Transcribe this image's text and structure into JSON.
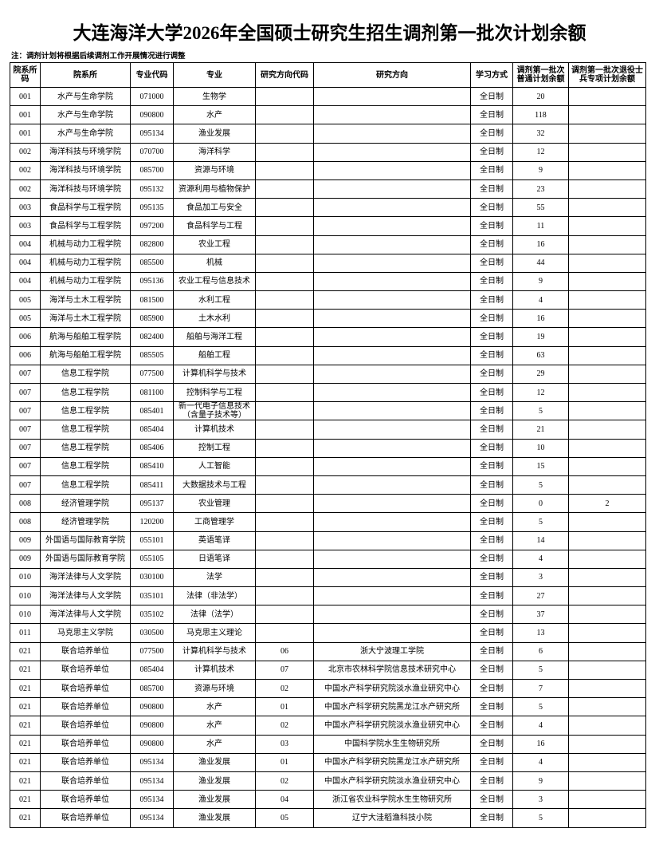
{
  "header": {
    "title": "大连海洋大学2026年全国硕士研究生招生调剂第一批次计划余额",
    "note": "注：调剂计划将根据后续调剂工作开展情况进行调整"
  },
  "table": {
    "columns": [
      "院系所码",
      "院系所",
      "专业代码",
      "专业",
      "研究方向代码",
      "研究方向",
      "学习方式",
      "调剂第一批次普通计划余额",
      "调剂第一批次退役士兵专项计划余额"
    ],
    "rows": [
      [
        "001",
        "水产与生命学院",
        "071000",
        "生物学",
        null,
        null,
        "全日制",
        20,
        null
      ],
      [
        "001",
        "水产与生命学院",
        "090800",
        "水产",
        null,
        null,
        "全日制",
        118,
        null
      ],
      [
        "001",
        "水产与生命学院",
        "095134",
        "渔业发展",
        null,
        null,
        "全日制",
        32,
        null
      ],
      [
        "002",
        "海洋科技与环境学院",
        "070700",
        "海洋科学",
        null,
        null,
        "全日制",
        12,
        null
      ],
      [
        "002",
        "海洋科技与环境学院",
        "085700",
        "资源与环境",
        null,
        null,
        "全日制",
        9,
        null
      ],
      [
        "002",
        "海洋科技与环境学院",
        "095132",
        "资源利用与植物保护",
        null,
        null,
        "全日制",
        23,
        null
      ],
      [
        "003",
        "食品科学与工程学院",
        "095135",
        "食品加工与安全",
        null,
        null,
        "全日制",
        55,
        null
      ],
      [
        "003",
        "食品科学与工程学院",
        "097200",
        "食品科学与工程",
        null,
        null,
        "全日制",
        11,
        null
      ],
      [
        "004",
        "机械与动力工程学院",
        "082800",
        "农业工程",
        null,
        null,
        "全日制",
        16,
        null
      ],
      [
        "004",
        "机械与动力工程学院",
        "085500",
        "机械",
        null,
        null,
        "全日制",
        44,
        null
      ],
      [
        "004",
        "机械与动力工程学院",
        "095136",
        "农业工程与信息技术",
        null,
        null,
        "全日制",
        9,
        null
      ],
      [
        "005",
        "海洋与土木工程学院",
        "081500",
        "水利工程",
        null,
        null,
        "全日制",
        4,
        null
      ],
      [
        "005",
        "海洋与土木工程学院",
        "085900",
        "土木水利",
        null,
        null,
        "全日制",
        16,
        null
      ],
      [
        "006",
        "航海与船舶工程学院",
        "082400",
        "船舶与海洋工程",
        null,
        null,
        "全日制",
        19,
        null
      ],
      [
        "006",
        "航海与船舶工程学院",
        "085505",
        "船舶工程",
        null,
        null,
        "全日制",
        63,
        null
      ],
      [
        "007",
        "信息工程学院",
        "077500",
        "计算机科学与技术",
        null,
        null,
        "全日制",
        29,
        null
      ],
      [
        "007",
        "信息工程学院",
        "081100",
        "控制科学与工程",
        null,
        null,
        "全日制",
        12,
        null
      ],
      [
        "007",
        "信息工程学院",
        "085401",
        "新一代电子信息技术（含量子技术等）",
        null,
        null,
        "全日制",
        5,
        null
      ],
      [
        "007",
        "信息工程学院",
        "085404",
        "计算机技术",
        null,
        null,
        "全日制",
        21,
        null
      ],
      [
        "007",
        "信息工程学院",
        "085406",
        "控制工程",
        null,
        null,
        "全日制",
        10,
        null
      ],
      [
        "007",
        "信息工程学院",
        "085410",
        "人工智能",
        null,
        null,
        "全日制",
        15,
        null
      ],
      [
        "007",
        "信息工程学院",
        "085411",
        "大数据技术与工程",
        null,
        null,
        "全日制",
        5,
        null
      ],
      [
        "008",
        "经济管理学院",
        "095137",
        "农业管理",
        null,
        null,
        "全日制",
        0,
        2
      ],
      [
        "008",
        "经济管理学院",
        "120200",
        "工商管理学",
        null,
        null,
        "全日制",
        5,
        null
      ],
      [
        "009",
        "外国语与国际教育学院",
        "055101",
        "英语笔译",
        null,
        null,
        "全日制",
        14,
        null
      ],
      [
        "009",
        "外国语与国际教育学院",
        "055105",
        "日语笔译",
        null,
        null,
        "全日制",
        4,
        null
      ],
      [
        "010",
        "海洋法律与人文学院",
        "030100",
        "法学",
        null,
        null,
        "全日制",
        3,
        null
      ],
      [
        "010",
        "海洋法律与人文学院",
        "035101",
        "法律（非法学）",
        null,
        null,
        "全日制",
        27,
        null
      ],
      [
        "010",
        "海洋法律与人文学院",
        "035102",
        "法律（法学）",
        null,
        null,
        "全日制",
        37,
        null
      ],
      [
        "011",
        "马克思主义学院",
        "030500",
        "马克思主义理论",
        null,
        null,
        "全日制",
        13,
        null
      ],
      [
        "021",
        "联合培养单位",
        "077500",
        "计算机科学与技术",
        "06",
        "浙大宁波理工学院",
        "全日制",
        6,
        null
      ],
      [
        "021",
        "联合培养单位",
        "085404",
        "计算机技术",
        "07",
        "北京市农林科学院信息技术研究中心",
        "全日制",
        5,
        null
      ],
      [
        "021",
        "联合培养单位",
        "085700",
        "资源与环境",
        "02",
        "中国水产科学研究院淡水渔业研究中心",
        "全日制",
        7,
        null
      ],
      [
        "021",
        "联合培养单位",
        "090800",
        "水产",
        "01",
        "中国水产科学研究院黑龙江水产研究所",
        "全日制",
        5,
        null
      ],
      [
        "021",
        "联合培养单位",
        "090800",
        "水产",
        "02",
        "中国水产科学研究院淡水渔业研究中心",
        "全日制",
        4,
        null
      ],
      [
        "021",
        "联合培养单位",
        "090800",
        "水产",
        "03",
        "中国科学院水生生物研究所",
        "全日制",
        16,
        null
      ],
      [
        "021",
        "联合培养单位",
        "095134",
        "渔业发展",
        "01",
        "中国水产科学研究院黑龙江水产研究所",
        "全日制",
        4,
        null
      ],
      [
        "021",
        "联合培养单位",
        "095134",
        "渔业发展",
        "02",
        "中国水产科学研究院淡水渔业研究中心",
        "全日制",
        9,
        null
      ],
      [
        "021",
        "联合培养单位",
        "095134",
        "渔业发展",
        "04",
        "浙江省农业科学院水生生物研究所",
        "全日制",
        3,
        null
      ],
      [
        "021",
        "联合培养单位",
        "095134",
        "渔业发展",
        "05",
        "辽宁大洼稻渔科技小院",
        "全日制",
        5,
        null
      ]
    ]
  }
}
